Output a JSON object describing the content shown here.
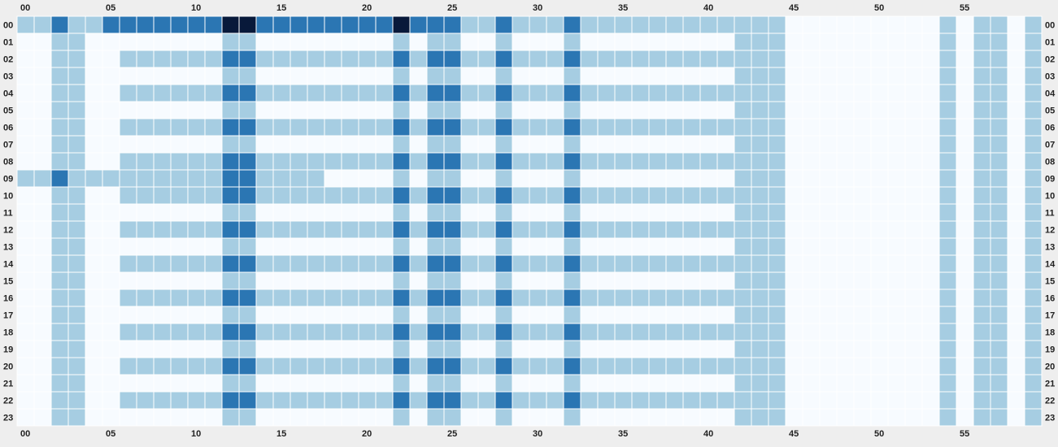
{
  "chart_data": {
    "type": "heatmap",
    "title": "",
    "xlabel": "",
    "ylabel": "",
    "x_ticks": [
      "00",
      "05",
      "10",
      "15",
      "20",
      "25",
      "30",
      "35",
      "40",
      "45",
      "50",
      "55"
    ],
    "y_ticks": [
      "00",
      "01",
      "02",
      "03",
      "04",
      "05",
      "06",
      "07",
      "08",
      "09",
      "10",
      "11",
      "12",
      "13",
      "14",
      "15",
      "16",
      "17",
      "18",
      "19",
      "20",
      "21",
      "22",
      "23"
    ],
    "n_cols": 60,
    "n_rows": 24,
    "levels": {
      "0": "#f7fbff",
      "1": "#a6cde2",
      "2": "#2b76b3",
      "3": "#08193a"
    },
    "matrix": [
      "112112222222332222222232221121112111111111111000000000101101",
      "001100000000110000000010110010001000000000111000000000101101",
      "001100111111221111111121221121112111111111111000000000101101",
      "001100000000110000000010110010001000000000111000000000101101",
      "001100111111221111111121221121112111111111111000000000101101",
      "001100000000110000000010110010001000000000111000000000101101",
      "001100111111221111111121221121112111111111111000000000101101",
      "001100000000110000000010110010001000000000111000000000101101",
      "001100111111221111111121221121112111111111111000000000101101",
      "112111111111221111000010110010001000000000111000000000101101",
      "001100111111221111111121221121112111111111111000000000101101",
      "001100000000110000000010110010001000000000111000000000101101",
      "001100111111221111111121221121112111111111111000000000101101",
      "001100000000110000000010110010001000000000111000000000101101",
      "001100111111221111111121221121112111111111111000000000101101",
      "001100000000110000000010110010001000000000111000000000101101",
      "001100111111221111111121221121112111111111111000000000101101",
      "001100000000110000000010110010001000000000111000000000101101",
      "001100111111221111111121221121112111111111111000000000101101",
      "001100000000110000000010110010001000000000111000000000101101",
      "001100111111221111111121221121112111111111111000000000101101",
      "001100000000110000000010110010001000000000111000000000101101",
      "001100111111221111111121221121112111111111111000000000101101",
      "001100000000110000000010110010001000000000111000000000101101"
    ]
  }
}
